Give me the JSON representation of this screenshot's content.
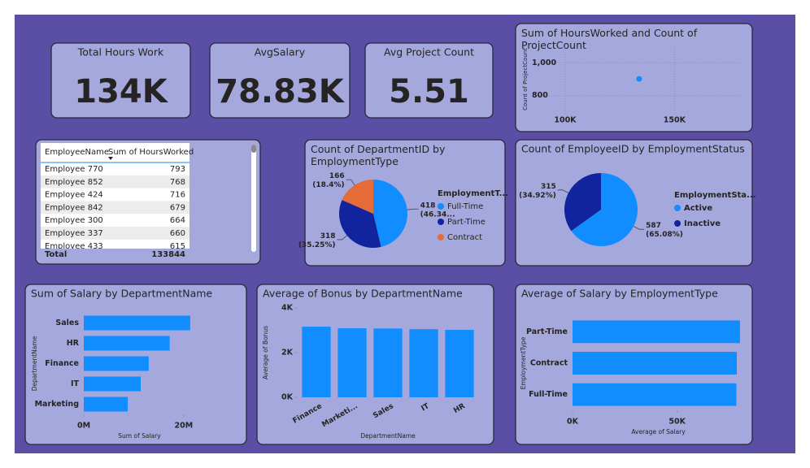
{
  "cards": [
    {
      "label": "Total Hours Work",
      "value": "134K"
    },
    {
      "label": "AvgSalary",
      "value": "78.83K"
    },
    {
      "label": "Avg Project Count",
      "value": "5.51"
    }
  ],
  "table": {
    "columns": [
      "EmployeeName",
      "Sum of HoursWorked"
    ],
    "rows": [
      [
        "Employee 770",
        793
      ],
      [
        "Employee 852",
        768
      ],
      [
        "Employee 424",
        716
      ],
      [
        "Employee 842",
        679
      ],
      [
        "Employee 300",
        664
      ],
      [
        "Employee 337",
        660
      ],
      [
        "Employee 433",
        615
      ]
    ],
    "total": [
      "Total",
      133844
    ]
  },
  "chart_data": [
    {
      "type": "scatter",
      "title": "Sum of HoursWorked and Count of ProjectCount",
      "y_label": "Count of ProjectCount",
      "x": [
        133844
      ],
      "values": [
        902
      ],
      "color": "#118DFF",
      "xlim": [
        87000,
        180000
      ],
      "xticks": [
        {
          "value": 100000,
          "label": "100K"
        },
        {
          "value": 150000,
          "label": "150K"
        }
      ],
      "ylim": [
        690,
        1110
      ],
      "yticks": [
        800,
        {
          "value": 1000,
          "label": "1,000"
        }
      ],
      "grid": true
    },
    {
      "type": "pie",
      "title": "Count of DepartmentID by EmploymentType",
      "legend_title": "EmploymentT...",
      "categories": [
        "Full-Time",
        "Part-Time",
        "Contract"
      ],
      "values": [
        418,
        318,
        166
      ],
      "value_labels": [
        "418 (46.34...",
        "318 (35.25%)",
        "166 (18.4%)"
      ],
      "colors": [
        "#118DFF",
        "#12239E",
        "#E66C37"
      ]
    },
    {
      "type": "pie",
      "title": "Count of EmployeeID by EmploymentStatus",
      "legend_title": "EmploymentSta...",
      "categories": [
        "Active",
        "Inactive"
      ],
      "values": [
        587,
        315
      ],
      "value_labels": [
        "587 (65.08%)",
        "315 (34.92%)"
      ],
      "colors": [
        "#118DFF",
        "#12239E"
      ]
    },
    {
      "type": "hbar",
      "title": "Sum of Salary by DepartmentName",
      "x_label": "Sum of Salary",
      "y_label": "DepartmentName",
      "categories": [
        "Sales",
        "HR",
        "Finance",
        "IT",
        "Marketing"
      ],
      "values": [
        21300000,
        17200000,
        13000000,
        11400000,
        8800000
      ],
      "color": "#118DFF",
      "xlim": [
        0,
        22300000
      ],
      "xticks": [
        {
          "value": 0,
          "label": "0M"
        },
        {
          "value": 20000000,
          "label": "20M"
        }
      ]
    },
    {
      "type": "bar",
      "title": "Average of Bonus by DepartmentName",
      "x_label": "DepartmentName",
      "y_label": "Average of Bonus",
      "categories": [
        "Finance",
        "Marketi...",
        "Sales",
        "IT",
        "HR"
      ],
      "values": [
        3160,
        3090,
        3080,
        3050,
        3020
      ],
      "color": "#118DFF",
      "ylim": [
        0,
        4000
      ],
      "yticks": [
        {
          "value": 0,
          "label": "0K"
        },
        {
          "value": 2000,
          "label": "2K"
        },
        {
          "value": 4000,
          "label": "4K"
        }
      ]
    },
    {
      "type": "hbar",
      "title": "Average of Salary by EmploymentType",
      "x_label": "Average of Salary",
      "y_label": "EmploymentType",
      "categories": [
        "Part-Time",
        "Contract",
        "Full-Time"
      ],
      "values": [
        80000,
        78500,
        78300
      ],
      "color": "#118DFF",
      "xlim": [
        0,
        82000
      ],
      "xticks": [
        {
          "value": 0,
          "label": "0K"
        },
        {
          "value": 50000,
          "label": "50K"
        }
      ]
    }
  ]
}
